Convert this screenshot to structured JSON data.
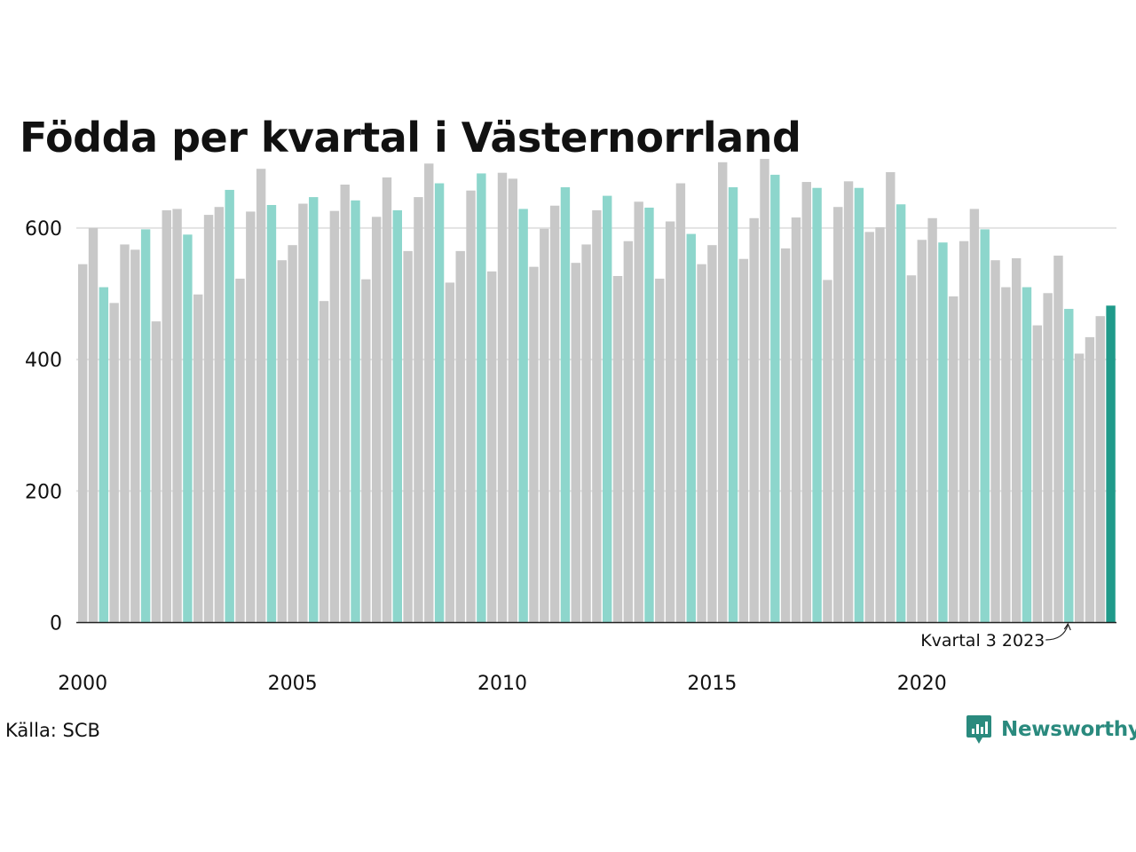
{
  "title": "Födda per kvartal i Västernorrland",
  "source": "Källa: SCB",
  "brand": "Newsworthy",
  "chart_data": {
    "type": "bar",
    "title": "Födda per kvartal i Västernorrland",
    "xlabel": "",
    "ylabel": "",
    "ylim": [
      0,
      720
    ],
    "yticks": [
      0,
      200,
      400,
      600
    ],
    "xticks": [
      2000,
      2005,
      2010,
      2015,
      2020
    ],
    "grid": true,
    "start_year": 2000,
    "highlight_quarter": 3,
    "colors": {
      "other": "#c8c8c8",
      "highlight": "#8dd6cc",
      "latest": "#1f9a8a",
      "axis": "#222222",
      "grid": "#e3e3e3",
      "brand": "#2a8a7e"
    },
    "annotation": {
      "text": "Kvartal 3 2023",
      "year": 2023,
      "quarter": 3
    },
    "values": [
      545,
      600,
      510,
      486,
      575,
      567,
      598,
      458,
      627,
      629,
      590,
      499,
      620,
      632,
      658,
      523,
      625,
      690,
      635,
      551,
      574,
      637,
      647,
      489,
      626,
      666,
      642,
      522,
      617,
      677,
      627,
      565,
      647,
      698,
      668,
      517,
      565,
      657,
      683,
      534,
      684,
      675,
      629,
      541,
      599,
      634,
      662,
      547,
      575,
      627,
      649,
      527,
      580,
      640,
      631,
      523,
      610,
      668,
      591,
      545,
      574,
      700,
      662,
      553,
      615,
      705,
      681,
      569,
      616,
      670,
      661,
      521,
      632,
      671,
      661,
      594,
      601,
      685,
      636,
      528,
      582,
      615,
      578,
      496,
      580,
      629,
      598,
      551,
      510,
      554,
      510,
      452,
      501,
      558,
      477,
      409,
      434,
      466,
      482
    ]
  }
}
